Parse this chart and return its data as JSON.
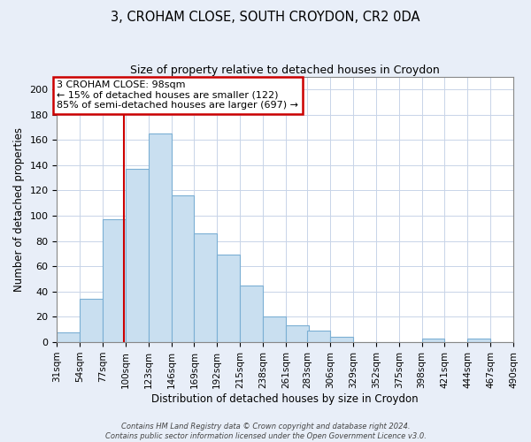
{
  "title": "3, CROHAM CLOSE, SOUTH CROYDON, CR2 0DA",
  "subtitle": "Size of property relative to detached houses in Croydon",
  "xlabel": "Distribution of detached houses by size in Croydon",
  "ylabel": "Number of detached properties",
  "bar_left_edges": [
    31,
    54,
    77,
    100,
    123,
    146,
    169,
    192,
    215,
    238,
    261,
    283,
    306,
    329,
    352,
    375,
    398,
    421,
    444,
    467
  ],
  "bar_heights": [
    8,
    34,
    97,
    137,
    165,
    116,
    86,
    69,
    45,
    20,
    13,
    9,
    4,
    0,
    0,
    0,
    3,
    0,
    3,
    0
  ],
  "bin_width": 23,
  "bar_color": "#c9dff0",
  "bar_edge_color": "#7bafd4",
  "property_line_x": 98,
  "property_line_color": "#cc0000",
  "ylim": [
    0,
    210
  ],
  "yticks": [
    0,
    20,
    40,
    60,
    80,
    100,
    120,
    140,
    160,
    180,
    200
  ],
  "xtick_labels": [
    "31sqm",
    "54sqm",
    "77sqm",
    "100sqm",
    "123sqm",
    "146sqm",
    "169sqm",
    "192sqm",
    "215sqm",
    "238sqm",
    "261sqm",
    "283sqm",
    "306sqm",
    "329sqm",
    "352sqm",
    "375sqm",
    "398sqm",
    "421sqm",
    "444sqm",
    "467sqm",
    "490sqm"
  ],
  "annotation_title": "3 CROHAM CLOSE: 98sqm",
  "annotation_line1": "← 15% of detached houses are smaller (122)",
  "annotation_line2": "85% of semi-detached houses are larger (697) →",
  "annotation_box_facecolor": "#ffffff",
  "annotation_box_edgecolor": "#cc0000",
  "footer_line1": "Contains HM Land Registry data © Crown copyright and database right 2024.",
  "footer_line2": "Contains public sector information licensed under the Open Government Licence v3.0.",
  "background_color": "#e8eef8",
  "plot_background_color": "#ffffff",
  "grid_color": "#c8d4e8",
  "title_fontsize": 10.5,
  "subtitle_fontsize": 9,
  "ylabel_fontsize": 8.5,
  "xlabel_fontsize": 8.5,
  "ytick_fontsize": 8,
  "xtick_fontsize": 7.5,
  "annotation_fontsize": 8,
  "footer_fontsize": 6
}
